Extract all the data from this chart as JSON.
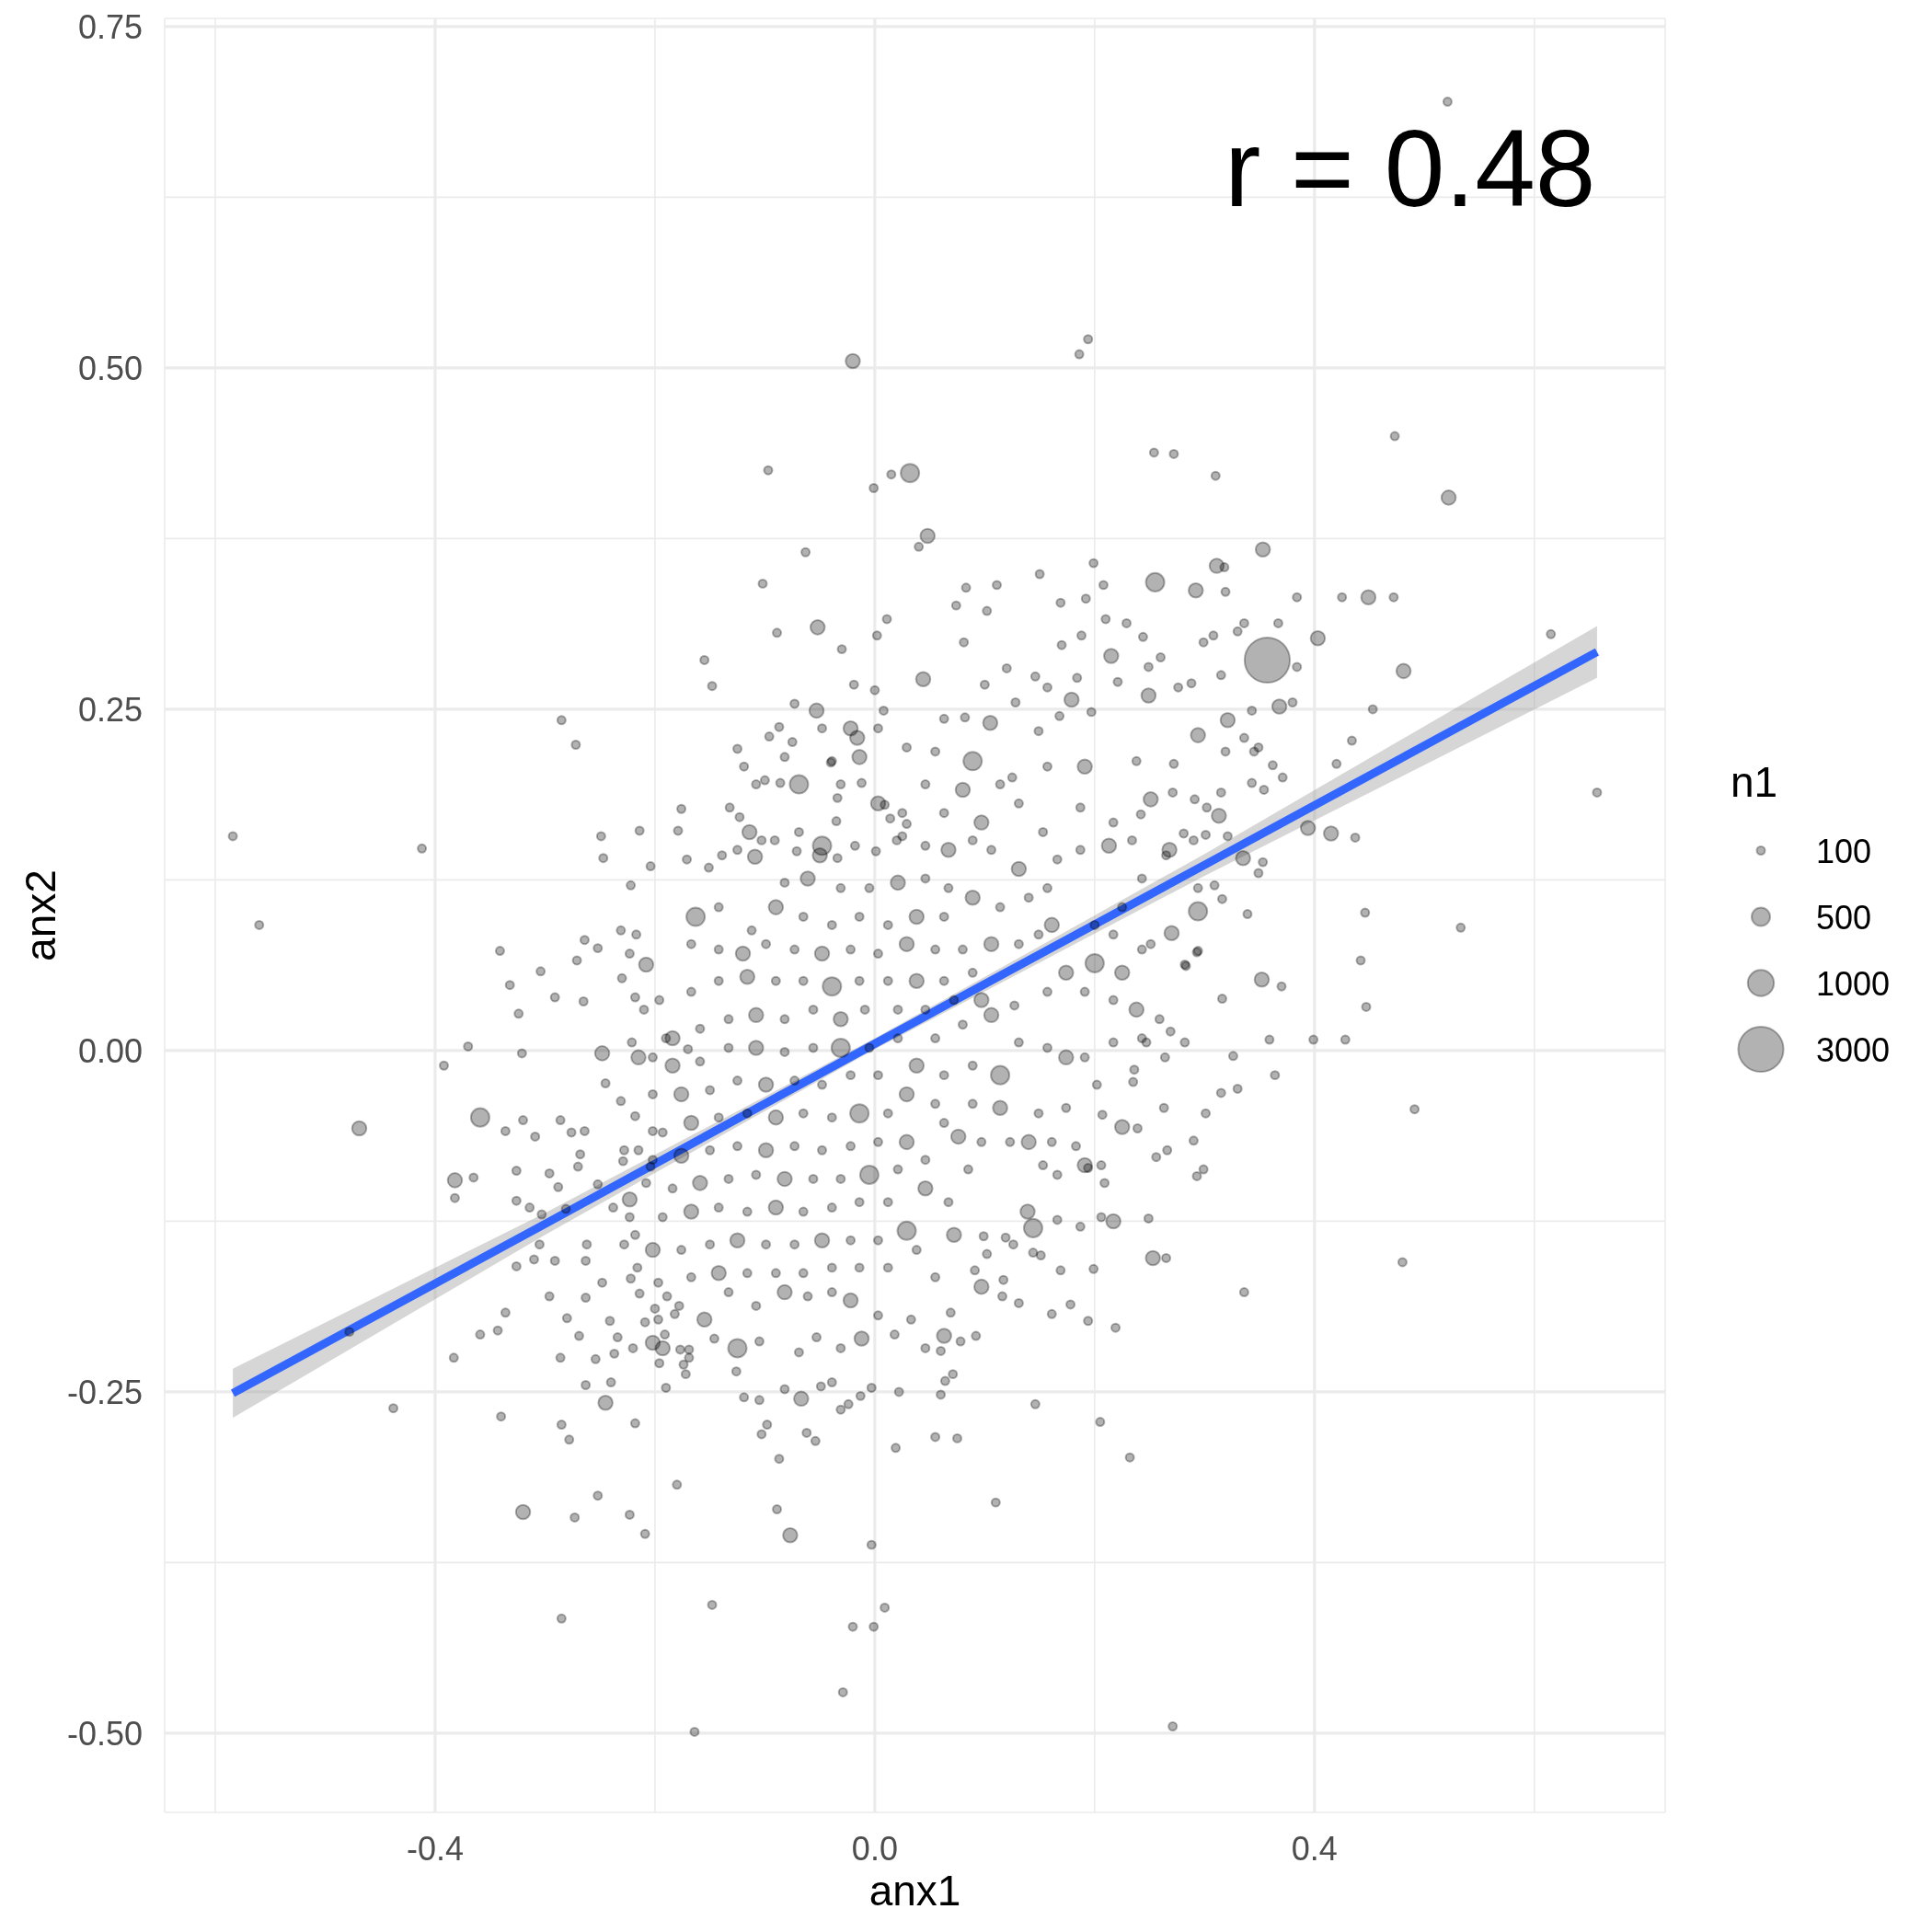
{
  "chart_data": {
    "type": "bubble",
    "xlabel": "anx1",
    "ylabel": "anx2",
    "legend_title": "n1",
    "annotations": [
      "r = 0.48"
    ],
    "xlim": [
      -0.646,
      0.719
    ],
    "ylim": [
      -0.558,
      0.756
    ],
    "xticks": [
      {
        "value": -0.6,
        "label": null
      },
      -0.4,
      {
        "value": -0.2,
        "label": null
      },
      {
        "value": 0,
        "label": "0.0"
      },
      {
        "value": 0.2,
        "label": null
      },
      0.4,
      {
        "value": 0.6,
        "label": null
      }
    ],
    "yticks": [
      {
        "value": -0.5,
        "label": "-0.50"
      },
      {
        "value": -0.375,
        "label": null
      },
      -0.25,
      {
        "value": -0.125,
        "label": null
      },
      {
        "value": 0,
        "label": "0.00"
      },
      {
        "value": 0.125,
        "label": null
      },
      0.25,
      {
        "value": 0.375,
        "label": null
      },
      {
        "value": 0.5,
        "label": "0.50"
      },
      {
        "value": 0.625,
        "label": null
      },
      0.75
    ],
    "grid": true,
    "size_legend": [
      100,
      500,
      1000,
      3000
    ],
    "series": [
      {
        "color": "#000000",
        "x": [
          -0.584,
          -0.56,
          -0.412,
          -0.285,
          -0.272,
          -0.37,
          -0.392,
          -0.469,
          -0.359,
          -0.478,
          -0.438,
          -0.34,
          -0.32,
          -0.285,
          -0.273,
          -0.252,
          -0.223,
          -0.209,
          -0.18,
          -0.148,
          -0.164,
          -0.029,
          -0.02,
          -0.001,
          0.009,
          -0.003,
          -0.077,
          -0.089,
          0.11,
          0.232,
          0.205,
          0.271,
          0.336,
          0.48,
          0.491,
          0.533,
          0.657,
          0.615,
          0.522,
          0.473,
          0.521,
          0.194,
          0.186,
          -0.02,
          -0.097,
          0.015,
          0.032,
          -0.001,
          0.254,
          0.272,
          0.31,
          0.048,
          0.04,
          -0.063,
          -0.102,
          0.353,
          0.442,
          0.447,
          0.446,
          0.399,
          0.428,
          0.453,
          0.434,
          0.449,
          0.472,
          0.425,
          0.481,
          0.403,
          0.415,
          0.437,
          0.42,
          0.394,
          -0.155,
          -0.148,
          -0.089,
          -0.052,
          0.011,
          0.002,
          -0.341,
          -0.332,
          -0.324,
          -0.321,
          -0.382,
          -0.382,
          -0.365,
          -0.326,
          -0.326,
          -0.314,
          -0.336,
          -0.32,
          -0.309,
          -0.286,
          -0.276,
          -0.296,
          -0.288,
          -0.304,
          -0.291,
          -0.265,
          -0.248,
          -0.336,
          -0.359,
          -0.343,
          -0.383,
          -0.285,
          -0.278,
          -0.087,
          -0.103,
          -0.098,
          -0.062,
          -0.054,
          0.019,
          0.022,
          -0.031,
          -0.024,
          -0.013,
          -0.003,
          -0.119,
          -0.105,
          -0.082,
          -0.067,
          -0.126,
          -0.105,
          -0.053,
          -0.039,
          -0.049,
          -0.19,
          -0.218,
          -0.172,
          -0.174,
          -0.196,
          -0.177,
          -0.22,
          -0.24,
          -0.245,
          -0.263,
          -0.269,
          -0.286,
          -0.254,
          -0.237,
          -0.241,
          -0.28,
          -0.296,
          -0.263,
          -0.248,
          -0.234,
          -0.291,
          -0.326,
          -0.31,
          -0.305,
          -0.264,
          -0.252,
          -0.271,
          -0.231,
          -0.217,
          -0.223,
          -0.208,
          -0.23,
          -0.218,
          -0.21,
          -0.196,
          -0.221,
          -0.215,
          -0.19,
          -0.17,
          -0.245,
          -0.231,
          -0.218,
          -0.202,
          -0.264,
          -0.268,
          -0.27,
          -0.228,
          -0.215,
          -0.229,
          -0.252,
          -0.238,
          -0.223,
          -0.208,
          -0.204,
          -0.262,
          -0.263,
          -0.303,
          -0.281,
          -0.218,
          -0.223,
          -0.228,
          -0.216,
          -0.222,
          -0.214,
          -0.2,
          -0.209,
          -0.191,
          -0.202,
          -0.189,
          -0.182,
          -0.169,
          0.352,
          0.37,
          0.316,
          0.359,
          0.326,
          0.364,
          0.315,
          0.33,
          0.301,
          0.29,
          0.299,
          0.293,
          0.266,
          0.256,
          0.249,
          0.253,
          0.265,
          0.219,
          0.194,
          0.178,
          0.161,
          0.131,
          0.169,
          0.199,
          0.151,
          0.117,
          0.092,
          0.078,
          0.06,
          0.071,
          0.064,
          0.06,
          0.055,
          0.075,
          0.146,
          0.206,
          0.187,
          0.166,
          0.139,
          0.126,
          0.099,
          0.282,
          0.293,
          0.269,
          0.282,
          0.247,
          0.236,
          0.235,
          0.263,
          0.225,
          0.239,
          0.207,
          0.209,
          0.206,
          0.194,
          -0.03,
          0,
          -0.019,
          -0.073,
          -0.053,
          -0.087,
          -0.096,
          -0.075,
          -0.125,
          -0.119,
          -0.1,
          -0.086,
          -0.04,
          -0.016,
          -0.034,
          -0.012,
          -0.132,
          -0.123,
          -0.176,
          -0.179,
          -0.214,
          -0.249,
          -0.247,
          -0.204,
          -0.171,
          -0.222,
          -0.151,
          -0.139,
          -0.114,
          -0.103,
          -0.091,
          -0.071,
          -0.05,
          -0.034,
          -0.018,
          0.001,
          0.02,
          0.014,
          0.025,
          0.009,
          0.169,
          0.192,
          0.208,
          0.21,
          0.229,
          0.244,
          0.26,
          0.292,
          0.319,
          0.318,
          0.311,
          0.299,
          0.308,
          0.33,
          0.336,
          0.367,
          0.315,
          0.288,
          0.276,
          0.249,
          0.221,
          0.184,
          0.157,
          0.128,
          0.1,
          0.074,
          0.102,
          0.12,
          0.081,
          0.146,
          0.17,
          0.188,
          0.215,
          0.343,
          0.368,
          0.38,
          0.321,
          0.336,
          0.349,
          0.362,
          0.371,
          0.354,
          0.343,
          0.315,
          0.291,
          0.271,
          0.242,
          0.281,
          0.301,
          0.313,
          0.265,
          0.335,
          0.353,
          0.349,
          0.316,
          0.309,
          0.199,
          0.15,
          0.111,
          0.083,
          0.255,
          0.357,
          0.384,
          0.384,
          0.008,
          0.044,
          0.063,
          0.082,
          0.105,
          0.149,
          0.168,
          0.179,
          0.197,
          0.249,
          0.294,
          0.319,
          0.345,
          0.272,
          0.238,
          0.191,
          0.157,
          0.125,
          0.089,
          0.055,
          0.029,
          -0.014,
          -0.039,
          -0.082,
          -0.109,
          -0.069,
          -0.035,
          0.003,
          0.029,
          0.063,
          0.097,
          0.131,
          0.153,
          0.187,
          0.217,
          0.251,
          0.302,
          0.321,
          0.294,
          0.339,
          0.251,
          0.27,
          0.294,
          0.283,
          0.217,
          0.144,
          0.116,
          0.097,
          0.091,
          0.069,
          0.063,
          0.046,
          0.033,
          0.018,
          0.003,
          -0.012,
          -0.031,
          -0.069,
          -0.125,
          -0.146,
          -0.169,
          -0.193,
          -0.197,
          -0.178,
          -0.155,
          -0.133,
          -0.108,
          -0.082,
          -0.061,
          -0.039,
          -0.022,
          -0.014,
          0.012,
          0.038,
          0.055,
          0.072,
          0.102,
          0.119,
          0.144,
          0.166,
          0.153,
          0.191,
          0.183,
          0.161,
          0.14,
          0.123,
          0.097,
          0.076,
          0.063,
          0.089,
          0.114,
          0.149,
          0.174,
          0.202,
          0.191,
          0.174,
          0.157,
          0.131,
          0.114,
          0.089,
          0.063,
          0.038,
          0.055,
          0.08,
          0.106,
          0.127,
          0.157,
          0.174,
          0.191,
          0.217,
          0.238,
          0.217,
          0.243,
          0.264,
          0.259,
          0.225,
          0.243,
          0.217,
          0.2,
          0.225,
          0.2,
          0.161,
          0.157,
          0.14,
          0.131,
          0.166,
          0.187,
          0.213,
          0.234,
          0.243,
          0.268,
          0.29,
          0.294,
          0.106,
          0.089,
          0.067,
          0.046,
          0.025,
          -0.048,
          -0.125,
          -0.082,
          -0.061,
          -0.031,
          -0.005,
          0.021,
          0.046,
          0.067,
          0.089,
          0.114,
          0.063,
          0.038,
          0.012,
          -0.014,
          -0.039,
          -0.065,
          -0.09,
          -0.112,
          -0.142,
          -0.163,
          -0.167,
          -0.142,
          -0.12,
          -0.099,
          -0.073,
          -0.048,
          -0.022,
          0.003,
          0.029,
          0.055,
          0.08,
          0.106,
          0.131,
          0.149,
          0.089,
          0.063,
          0.038,
          0.012,
          -0.014,
          -0.039,
          -0.065,
          -0.09,
          -0.116,
          -0.142,
          -0.167,
          -0.184,
          -0.159,
          -0.133,
          -0.108,
          -0.082,
          -0.056,
          -0.031,
          -0.009,
          0.021,
          0.046,
          0.072,
          0.097,
          0.021,
          -0.005,
          -0.031,
          -0.056,
          -0.082,
          -0.108,
          -0.133,
          -0.159,
          -0.184,
          -0.202,
          -0.202,
          -0.176,
          -0.15,
          -0.125,
          -0.099,
          -0.073,
          -0.048,
          -0.022,
          0.003,
          0.029,
          0.055,
          0.012,
          -0.014,
          -0.039,
          -0.065,
          -0.09,
          -0.116,
          -0.142,
          -0.167,
          -0.193,
          -0.202,
          -0.176,
          -0.15,
          -0.125,
          -0.099,
          -0.073,
          -0.048,
          -0.022,
          0.003,
          0.029,
          0.046,
          0.021,
          -0.005,
          -0.031,
          -0.056,
          -0.082,
          -0.108,
          -0.133,
          -0.159,
          -0.184,
          -0.193,
          -0.167,
          -0.142,
          -0.116,
          -0.09,
          -0.065,
          -0.039,
          -0.014,
          0.012,
          0.046,
          0.067,
          0.085,
          0.029,
          0.003,
          -0.022,
          -0.048,
          -0.073,
          -0.099,
          -0.125,
          -0.15,
          -0.176,
          -0.202,
          -0.197,
          -0.167,
          -0.142,
          -0.116,
          -0.09,
          -0.065,
          -0.039,
          -0.022,
          -0.048,
          0.003,
          -0.069,
          -0.031,
          0.046,
          0.08,
          0.114,
          -0.108
        ],
        "values": [
          0.157,
          0.092,
          0.148,
          0.242,
          0.224,
          0.003,
          -0.011,
          -0.057,
          -0.049,
          -0.206,
          -0.262,
          -0.268,
          -0.338,
          -0.416,
          -0.342,
          -0.326,
          -0.34,
          -0.354,
          -0.318,
          -0.406,
          -0.499,
          -0.47,
          -0.422,
          -0.422,
          -0.408,
          -0.362,
          -0.355,
          -0.336,
          -0.331,
          -0.298,
          -0.272,
          -0.495,
          -0.177,
          -0.155,
          -0.043,
          0.09,
          0.189,
          0.305,
          0.405,
          0.45,
          0.695,
          0.521,
          0.51,
          0.505,
          0.425,
          0.422,
          0.423,
          0.412,
          0.438,
          0.437,
          0.421,
          0.377,
          0.369,
          0.365,
          0.342,
          0.367,
          0.066,
          0.032,
          0.101,
          0.008,
          0.008,
          0.25,
          0.227,
          0.332,
          0.332,
          0.332,
          0.278,
          0.302,
          0.159,
          0.156,
          0.21,
          0.163,
          0.286,
          0.267,
          0.306,
          0.31,
          0.316,
          0.304,
          0.073,
          0.048,
          0.027,
          -0.002,
          -0.095,
          -0.108,
          -0.093,
          -0.088,
          -0.11,
          -0.115,
          -0.059,
          -0.051,
          -0.063,
          -0.051,
          -0.06,
          -0.09,
          -0.1,
          0.058,
          0.039,
          0.036,
          -0.002,
          -0.192,
          -0.208,
          -0.205,
          -0.225,
          -0.274,
          -0.285,
          -0.299,
          -0.281,
          -0.274,
          -0.28,
          -0.286,
          -0.291,
          -0.25,
          -0.263,
          -0.259,
          -0.253,
          -0.247,
          -0.254,
          -0.256,
          -0.248,
          -0.255,
          -0.235,
          -0.213,
          -0.21,
          -0.243,
          -0.246,
          -0.247,
          -0.273,
          -0.237,
          -0.23,
          -0.229,
          -0.219,
          -0.218,
          -0.243,
          -0.258,
          -0.245,
          -0.209,
          -0.225,
          -0.226,
          -0.222,
          -0.198,
          -0.196,
          -0.18,
          -0.181,
          -0.17,
          -0.21,
          -0.154,
          -0.158,
          -0.153,
          -0.142,
          0.081,
          0.075,
          0.066,
          0.088,
          0.085,
          0.071,
          0.063,
          0.053,
          0.039,
          0.03,
          0.037,
          0.006,
          -0.005,
          0.009,
          0.001,
          -0.024,
          -0.037,
          -0.048,
          -0.059,
          -0.059,
          -0.076,
          -0.085,
          -0.073,
          -0.073,
          -0.081,
          -0.098,
          -0.115,
          -0.109,
          -0.097,
          -0.085,
          -0.142,
          -0.154,
          -0.12,
          -0.116,
          -0.135,
          -0.122,
          -0.142,
          -0.159,
          -0.167,
          -0.178,
          -0.189,
          -0.199,
          -0.208,
          -0.214,
          -0.18,
          -0.193,
          -0.219,
          0.052,
          0.047,
          0.038,
          0.008,
          -0.004,
          -0.018,
          -0.031,
          -0.028,
          -0.046,
          -0.066,
          -0.087,
          -0.092,
          -0.073,
          -0.078,
          -0.123,
          -0.152,
          -0.152,
          -0.203,
          -0.198,
          -0.186,
          -0.193,
          -0.185,
          -0.161,
          -0.16,
          -0.15,
          -0.168,
          -0.209,
          -0.213,
          -0.22,
          -0.237,
          -0.242,
          -0.252,
          -0.283,
          -0.284,
          -0.259,
          -0.122,
          -0.129,
          -0.124,
          -0.118,
          -0.142,
          -0.136,
          0.063,
          0.072,
          0.014,
          0.006,
          0.006,
          -0.014,
          -0.023,
          -0.042,
          -0.056,
          -0.057,
          -0.047,
          -0.097,
          -0.084,
          -0.086,
          0.294,
          0.264,
          0.268,
          0.254,
          0.249,
          0.237,
          0.23,
          0.226,
          0.221,
          0.208,
          0.198,
          0.196,
          0.211,
          0.229,
          0.185,
          0.196,
          0.178,
          0.171,
          0.177,
          0.161,
          0.161,
          0.157,
          0.141,
          0.135,
          0.14,
          0.121,
          0.134,
          0.143,
          0.16,
          0.154,
          0.154,
          0.146,
          0.143,
          0.141,
          0.15,
          0.146,
          0.154,
          0.17,
          0.174,
          0.18,
          0.328,
          0.331,
          0.341,
          0.316,
          0.313,
          0.303,
          0.288,
          0.337,
          0.336,
          0.354,
          0.355,
          0.299,
          0.304,
          0.307,
          0.313,
          0.313,
          0.275,
          0.269,
          0.266,
          0.26,
          0.27,
          0.273,
          0.266,
          0.255,
          0.268,
          0.326,
          0.322,
          0.28,
          0.299,
          0.274,
          0.297,
          0.304,
          0.289,
          0.249,
          0.252,
          0.255,
          0.242,
          0.229,
          0.222,
          0.209,
          0.2,
          0.191,
          0.196,
          0.189,
          0.184,
          0.189,
          0.173,
          0.159,
          0.158,
          0.172,
          0.143,
          0.141,
          0.138,
          0.13,
          0.111,
          0.121,
          0.357,
          0.349,
          0.341,
          0.339,
          0.343,
          0.286,
          0.332,
          0.281,
          0.249,
          0.272,
          0.243,
          0.244,
          0.24,
          0.234,
          0.245,
          0.257,
          0.248,
          0.281,
          0.231,
          0.219,
          0.219,
          0.21,
          0.212,
          0.208,
          0.208,
          0.2,
          0.212,
          0.219,
          0.222,
          0.215,
          0.212,
          0.215,
          0.142,
          0.16,
          0.168,
          0.181,
          0.166,
          0.174,
          0.167,
          0.181,
          0.16,
          0.178,
          0.167,
          0.184,
          0.178,
          0.157,
          0.102,
          0.1,
          0.078,
          0.086,
          0.073,
          0.062,
          -0.125,
          -0.148,
          -0.18,
          -0.173,
          -0.161,
          -0.192,
          -0.209,
          -0.218,
          -0.197,
          -0.208,
          -0.194,
          -0.211,
          -0.218,
          -0.221,
          -0.218,
          -0.211,
          -0.225,
          -0.218,
          -0.197,
          -0.187,
          -0.197,
          -0.177,
          -0.187,
          -0.177,
          -0.18,
          -0.177,
          -0.183,
          -0.159,
          -0.159,
          -0.146,
          -0.166,
          -0.135,
          -0.149,
          -0.137,
          -0.13,
          -0.091,
          -0.084,
          -0.084,
          -0.07,
          -0.067,
          -0.067,
          -0.067,
          -0.067,
          -0.063,
          -0.053,
          -0.039,
          -0.042,
          -0.046,
          -0.042,
          -0.025,
          -0.005,
          -0.005,
          0.002,
          0.006,
          -0.018,
          -0.011,
          -0.018,
          -0.011,
          0.009,
          0.019,
          0.026,
          0.033,
          0.043,
          0.057,
          0.043,
          0.037,
          0.03,
          0.006,
          0.009,
          -0.005,
          0.023,
          0.057,
          0.074,
          0.085,
          0.064,
          0.105,
          0.092,
          0.092,
          0.119,
          0.112,
          0.133,
          0.14,
          0.147,
          0.15,
          0.154,
          0.126,
          0.147,
          0.154,
          0.119,
          0.147,
          0.154,
          0.147,
          0.15,
          0.157,
          0.15,
          0.147,
          0.123,
          0.126,
          0.119,
          0.119,
          0.123,
          0.126,
          0.119,
          0.112,
          0.105,
          0.098,
          0.098,
          0.092,
          0.098,
          0.092,
          0.098,
          0.105,
          0.088,
          0.105,
          0.098,
          0.078,
          0.074,
          0.071,
          0.078,
          0.074,
          0.071,
          0.074,
          0.071,
          0.078,
          0.074,
          0.074,
          0.078,
          0.078,
          0.085,
          0.057,
          0.051,
          0.051,
          0.051,
          0.051,
          0.047,
          0.051,
          0.051,
          0.054,
          0.051,
          0.043,
          0.009,
          0.016,
          0.023,
          0.026,
          0.023,
          0.03,
          0.023,
          0.03,
          0.03,
          0.03,
          0.037,
          0.037,
          0.009,
          0.002,
          0.002,
          0.002,
          -0.001,
          0.002,
          0.002,
          -0.008,
          -0.011,
          -0.005,
          -0.032,
          -0.032,
          -0.029,
          -0.022,
          -0.025,
          -0.022,
          -0.025,
          -0.018,
          -0.018,
          -0.032,
          -0.039,
          -0.046,
          -0.046,
          -0.049,
          -0.046,
          -0.049,
          -0.046,
          -0.049,
          -0.053,
          -0.06,
          -0.08,
          -0.077,
          -0.073,
          -0.07,
          -0.073,
          -0.07,
          -0.073,
          -0.07,
          -0.067,
          -0.067,
          -0.08,
          -0.087,
          -0.091,
          -0.094,
          -0.094,
          -0.094,
          -0.091,
          -0.094,
          -0.097,
          -0.101,
          -0.122,
          -0.118,
          -0.115,
          -0.118,
          -0.115,
          -0.118,
          -0.115,
          -0.111,
          -0.111,
          -0.101,
          -0.111,
          -0.087,
          -0.132,
          -0.139,
          -0.139,
          -0.139,
          -0.142,
          -0.142,
          -0.139,
          -0.142,
          -0.146,
          -0.146,
          -0.17,
          -0.166,
          -0.163,
          -0.163,
          -0.163,
          -0.163,
          -0.159,
          0.236,
          0.236,
          0.236,
          0.195,
          0.195,
          0.195,
          0.191,
          0.195,
          0.195
        ],
        "sizes": [
          100,
          100,
          100,
          100,
          100,
          100,
          100,
          300,
          500,
          100,
          100,
          100,
          300,
          100,
          100,
          100,
          100,
          100,
          100,
          100,
          100,
          100,
          100,
          100,
          100,
          100,
          300,
          100,
          100,
          100,
          100,
          100,
          100,
          100,
          100,
          100,
          100,
          100,
          300,
          100,
          100,
          100,
          100,
          300,
          100,
          100,
          500,
          100,
          100,
          100,
          100,
          300,
          100,
          100,
          100,
          300,
          100,
          100,
          100,
          100,
          100,
          100,
          100,
          300,
          100,
          100,
          300,
          300,
          300,
          100,
          100,
          300,
          100,
          100,
          100,
          300,
          100,
          100,
          100,
          100,
          100,
          100,
          300,
          100,
          100,
          100,
          100,
          100,
          100,
          100,
          100,
          100,
          100,
          100,
          100,
          100,
          100,
          100,
          300,
          100,
          100,
          100,
          100,
          100,
          100,
          100,
          100,
          100,
          100,
          100,
          100,
          100,
          100,
          100,
          100,
          100,
          100,
          100,
          100,
          300,
          100,
          100,
          100,
          100,
          100,
          100,
          100,
          100,
          100,
          100,
          100,
          100,
          100,
          300,
          100,
          100,
          100,
          100,
          100,
          100,
          100,
          100,
          100,
          100,
          100,
          100,
          100,
          100,
          100,
          100,
          100,
          100,
          100,
          100,
          100,
          300,
          100,
          100,
          100,
          100,
          100,
          300,
          100,
          100,
          100,
          100,
          100,
          100,
          100,
          100,
          100,
          100,
          100,
          100,
          100,
          100,
          300,
          100,
          100,
          100,
          100,
          100,
          100,
          100,
          100,
          100,
          100,
          100,
          100,
          100,
          100,
          100,
          300,
          100,
          100,
          100,
          300,
          100,
          100,
          100,
          100,
          100,
          100,
          100,
          100,
          100,
          100,
          100,
          100,
          100,
          100,
          300,
          100,
          100,
          100,
          100,
          100,
          100,
          100,
          100,
          100,
          100,
          100,
          100,
          100,
          100,
          100,
          100,
          100,
          100,
          100,
          100,
          100,
          100,
          300,
          100,
          100,
          100,
          100,
          100,
          100,
          100,
          100,
          100,
          100,
          300,
          100,
          100,
          100,
          100,
          100,
          100,
          100,
          100,
          100,
          300,
          100,
          100,
          100,
          100,
          100,
          100,
          100,
          100,
          300,
          100,
          100,
          100,
          100,
          100,
          100,
          100,
          100,
          100,
          100,
          100,
          100,
          100,
          100,
          300,
          100,
          100,
          100,
          300,
          100,
          100,
          100,
          100,
          100,
          100,
          100,
          100,
          100,
          100,
          100,
          100,
          100,
          100,
          300,
          100,
          100,
          300,
          100,
          100,
          100,
          100,
          100,
          100,
          100,
          100,
          300,
          100,
          100,
          100,
          100,
          100,
          100,
          100,
          100,
          100,
          100,
          100,
          100,
          300,
          100,
          300,
          100,
          300,
          100,
          100,
          100,
          100,
          100,
          100,
          100,
          100,
          100,
          100,
          100,
          100,
          300,
          100,
          300,
          100,
          100,
          100,
          100,
          100,
          100,
          100,
          100,
          500,
          3000,
          100,
          100,
          100,
          300,
          100,
          100,
          300,
          100,
          100,
          300,
          100,
          100,
          300,
          100,
          100,
          100,
          100,
          300,
          100,
          100,
          500,
          100,
          100,
          300,
          100,
          100,
          300,
          100,
          100,
          300,
          100,
          100,
          300,
          100,
          100,
          100,
          100,
          300,
          100,
          100,
          500,
          100,
          100,
          300,
          100,
          100,
          300,
          100,
          100,
          300,
          100,
          100,
          300,
          100,
          100,
          100,
          100,
          300,
          100,
          100,
          500,
          100,
          100,
          300,
          100,
          100,
          300,
          100,
          100,
          300,
          100,
          100,
          300,
          100,
          100,
          100,
          100,
          300,
          100,
          100,
          500,
          100,
          100,
          300,
          100,
          100,
          300,
          100,
          100,
          300,
          100,
          100,
          300,
          100,
          100,
          100,
          100,
          300,
          100,
          100,
          500,
          100,
          100,
          300,
          100,
          100,
          300,
          100,
          100,
          300,
          100,
          100,
          300,
          100,
          100,
          100,
          100,
          300,
          100,
          100,
          500,
          100,
          100,
          300,
          100,
          100,
          300,
          100,
          100,
          300,
          100,
          100,
          300,
          100,
          100,
          100,
          100,
          300,
          100,
          100,
          500,
          100,
          100,
          300,
          100,
          100,
          300,
          100,
          100,
          300,
          100,
          100,
          300,
          100,
          100,
          100,
          100,
          300,
          100,
          100,
          500,
          100,
          100,
          300,
          100,
          100,
          300,
          100,
          100,
          300,
          100,
          100,
          300,
          100,
          100,
          100,
          100,
          300,
          100,
          100,
          500,
          100,
          100,
          300,
          100,
          100,
          300,
          100,
          100,
          300,
          100,
          100,
          300,
          100,
          100,
          100,
          100,
          300,
          100,
          100,
          500,
          100,
          100,
          300,
          100,
          100,
          300,
          100,
          100,
          300,
          100,
          100,
          300,
          100,
          100,
          100,
          100,
          300,
          100,
          100,
          500,
          100,
          100,
          300,
          100,
          100,
          300,
          100,
          100,
          300,
          100,
          100,
          300,
          100,
          100,
          100,
          100,
          300,
          100,
          100,
          500,
          100,
          100,
          300,
          100,
          100,
          300,
          100,
          100,
          300,
          100,
          100,
          300,
          100,
          100,
          100,
          100,
          300,
          100,
          100,
          500,
          100,
          100,
          300,
          100,
          100,
          300,
          100,
          100,
          300,
          100,
          100,
          300,
          100,
          100,
          100,
          100,
          300,
          100,
          100,
          500,
          100,
          100,
          300,
          100,
          100
        ]
      },
      {
        "type": "line",
        "color": "#3366ff",
        "x": [
          -0.584,
          -0.3,
          0,
          0.3,
          0.657
        ],
        "values": [
          -0.251,
          -0.127,
          0.005,
          0.136,
          0.292
        ],
        "lower": [
          -0.269,
          -0.135,
          0.001,
          0.128,
          0.273
        ],
        "upper": [
          -0.233,
          -0.119,
          0.009,
          0.144,
          0.311
        ]
      }
    ]
  }
}
